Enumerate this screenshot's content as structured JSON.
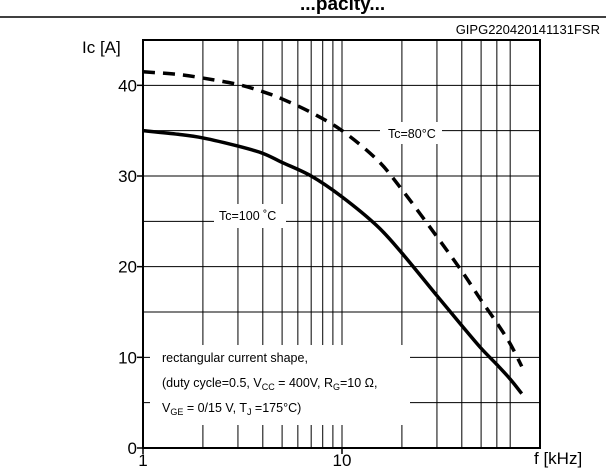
{
  "top_fragment": "...pacity...",
  "chart_data": {
    "type": "line",
    "figure_code": "GIPG220420141131FSR",
    "ylabel": "Ic [A]",
    "xlabel": "f [kHz]",
    "x_scale": "log",
    "xlim": [
      1,
      80
    ],
    "ylim": [
      0,
      45
    ],
    "grid": true,
    "x_ticks": [
      1,
      10
    ],
    "x_tick_labels": [
      "1",
      "10"
    ],
    "y_ticks": [
      0,
      10,
      20,
      30,
      40
    ],
    "y_tick_labels": [
      "0",
      "10",
      "20",
      "30",
      "40"
    ],
    "series": [
      {
        "name": "Tc=100 °C",
        "style": "solid",
        "color": "#000000",
        "x": [
          1,
          1.5,
          2,
          3,
          4,
          5,
          7,
          10,
          15,
          20,
          30,
          40,
          50,
          60,
          70,
          80
        ],
        "y": [
          35,
          34.6,
          34.2,
          33.3,
          32.5,
          31.5,
          30,
          27.7,
          24.5,
          21.5,
          16.8,
          13.5,
          11,
          9.2,
          7.6,
          6
        ]
      },
      {
        "name": "Tc=80°C",
        "style": "dashed",
        "color": "#000000",
        "x": [
          1,
          1.5,
          2,
          3,
          4,
          5,
          7,
          10,
          15,
          20,
          30,
          40,
          50,
          60,
          70,
          80
        ],
        "y": [
          41.5,
          41.2,
          40.8,
          40.1,
          39.3,
          38.5,
          37,
          35,
          31.8,
          28.5,
          23.3,
          19.5,
          16.3,
          13.8,
          11.5,
          9
        ]
      }
    ],
    "annotations": {
      "tc80": "Tc=80°C",
      "tc100": "Tc=100 ˚C",
      "cond_line1": "rectangular current shape,",
      "cond_line2_a": "(duty cycle=0.5, V",
      "cond_line2_sub1": "CC",
      "cond_line2_b": " = 400V, R",
      "cond_line2_sub2": "G",
      "cond_line2_c": "=10 Ω,",
      "cond_line3_a": "V",
      "cond_line3_sub1": "GE",
      "cond_line3_b": " = 0/15 V, T",
      "cond_line3_sub2": "J",
      "cond_line3_c": " =175°C)"
    }
  }
}
